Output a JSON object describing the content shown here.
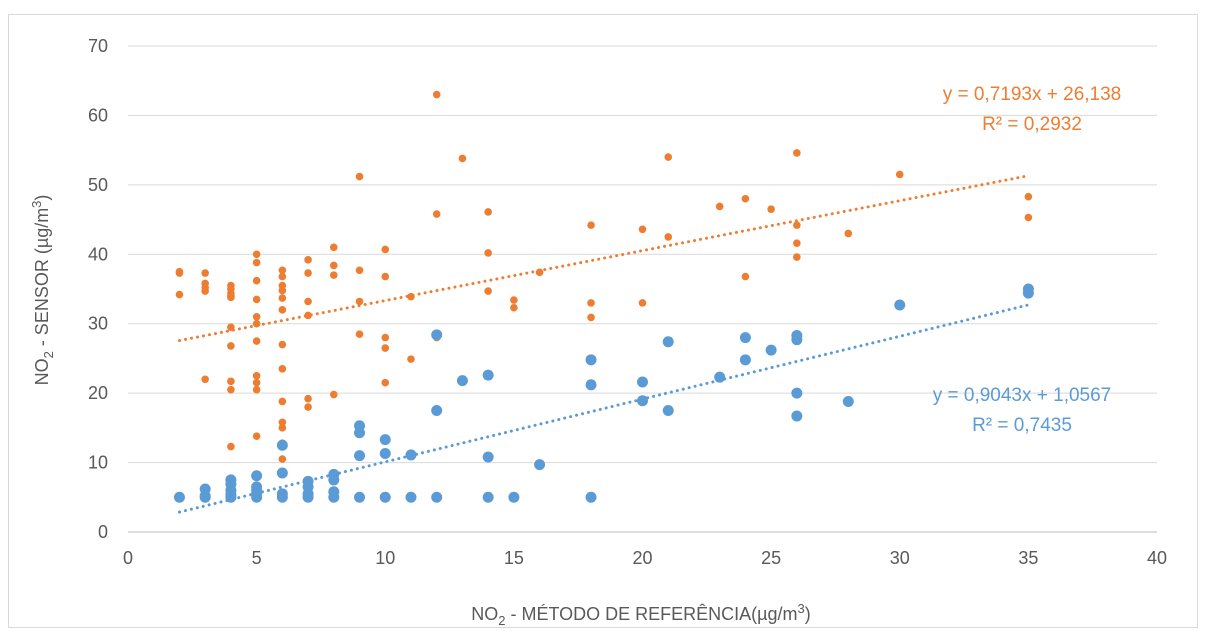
{
  "chart_data": {
    "type": "scatter",
    "xlabel": {
      "pre": "NO",
      "sub": "2",
      "post": " - MÉTODO DE REFERÊNCIA(µg/m",
      "sup": "3",
      "end": ")"
    },
    "ylabel": {
      "pre": "NO",
      "sub": "2",
      "post": " - SENSOR (µg/m",
      "sup": "3",
      "end": ")"
    },
    "xlim": [
      0,
      40
    ],
    "ylim": [
      0,
      70
    ],
    "xticks": [
      "0",
      "5",
      "10",
      "15",
      "20",
      "25",
      "30",
      "35",
      "40"
    ],
    "yticks": [
      "0",
      "10",
      "20",
      "30",
      "40",
      "50",
      "60",
      "70"
    ],
    "grid": "horizontal",
    "series": [
      {
        "color": "#ED7D31",
        "marker_size": "small",
        "equation": "y = 0,7193x + 26,138",
        "r2": "R² = 0,2932",
        "trendline": {
          "slope": 0.7193,
          "intercept": 26.138,
          "x_range": [
            2,
            35
          ]
        },
        "points": [
          [
            2,
            37.5
          ],
          [
            2,
            37.3
          ],
          [
            2,
            34.2
          ],
          [
            3,
            37.3
          ],
          [
            3,
            35.8
          ],
          [
            3,
            35.2
          ],
          [
            3,
            34.7
          ],
          [
            3,
            22
          ],
          [
            4,
            35.5
          ],
          [
            4,
            35
          ],
          [
            4,
            34.4
          ],
          [
            4,
            34
          ],
          [
            4,
            33.8
          ],
          [
            4,
            29.5
          ],
          [
            4,
            26.8
          ],
          [
            4,
            21.7
          ],
          [
            4,
            20.5
          ],
          [
            4,
            12.3
          ],
          [
            5,
            40
          ],
          [
            5,
            38.8
          ],
          [
            5,
            36.2
          ],
          [
            5,
            33.5
          ],
          [
            5,
            31
          ],
          [
            5,
            30
          ],
          [
            5,
            27.5
          ],
          [
            5,
            22.5
          ],
          [
            5,
            21.5
          ],
          [
            5,
            20.5
          ],
          [
            5,
            13.8
          ],
          [
            6,
            37.7
          ],
          [
            6,
            36.8
          ],
          [
            6,
            35.5
          ],
          [
            6,
            34.8
          ],
          [
            6,
            33.7
          ],
          [
            6,
            32
          ],
          [
            6,
            27
          ],
          [
            6,
            23.5
          ],
          [
            6,
            18.8
          ],
          [
            6,
            15.8
          ],
          [
            6,
            15
          ],
          [
            6,
            12.8
          ],
          [
            6,
            10.5
          ],
          [
            7,
            39.2
          ],
          [
            7,
            37.3
          ],
          [
            7,
            33.2
          ],
          [
            7,
            31.2
          ],
          [
            7,
            19.2
          ],
          [
            7,
            18
          ],
          [
            8,
            41
          ],
          [
            8,
            38.4
          ],
          [
            8,
            37
          ],
          [
            8,
            19.8
          ],
          [
            9,
            51.2
          ],
          [
            9,
            37.7
          ],
          [
            9,
            33.2
          ],
          [
            9,
            28.5
          ],
          [
            10,
            40.7
          ],
          [
            10,
            36.8
          ],
          [
            10,
            28
          ],
          [
            10,
            26.5
          ],
          [
            10,
            21.5
          ],
          [
            11,
            33.9
          ],
          [
            11,
            24.9
          ],
          [
            12,
            63
          ],
          [
            12,
            45.8
          ],
          [
            12,
            28
          ],
          [
            13,
            53.8
          ],
          [
            14,
            46.1
          ],
          [
            14,
            40.2
          ],
          [
            14,
            34.7
          ],
          [
            15,
            33.4
          ],
          [
            15,
            32.3
          ],
          [
            16,
            37.4
          ],
          [
            18,
            44.2
          ],
          [
            18,
            33
          ],
          [
            18,
            30.9
          ],
          [
            20,
            43.6
          ],
          [
            20,
            33
          ],
          [
            21,
            54
          ],
          [
            21,
            42.5
          ],
          [
            23,
            46.9
          ],
          [
            24,
            48
          ],
          [
            24,
            36.8
          ],
          [
            25,
            46.5
          ],
          [
            26,
            54.6
          ],
          [
            26,
            44.2
          ],
          [
            26,
            41.6
          ],
          [
            26,
            39.6
          ],
          [
            28,
            43
          ],
          [
            30,
            51.5
          ],
          [
            35,
            48.3
          ],
          [
            35,
            45.3
          ]
        ]
      },
      {
        "color": "#5B9BD5",
        "marker_size": "large",
        "equation": "y = 0,9043x + 1,0567",
        "r2": "R² = 0,7435",
        "trendline": {
          "slope": 0.9043,
          "intercept": 1.0567,
          "x_range": [
            2,
            35
          ]
        },
        "points": [
          [
            2,
            5
          ],
          [
            3,
            6.2
          ],
          [
            3,
            5.2
          ],
          [
            3,
            5
          ],
          [
            4,
            7.5
          ],
          [
            4,
            6.9
          ],
          [
            4,
            6
          ],
          [
            4,
            5.4
          ],
          [
            4,
            5
          ],
          [
            5,
            8.1
          ],
          [
            5,
            6.5
          ],
          [
            5,
            6
          ],
          [
            5,
            5.5
          ],
          [
            5,
            5
          ],
          [
            6,
            12.5
          ],
          [
            6,
            8.5
          ],
          [
            6,
            5.5
          ],
          [
            6,
            5
          ],
          [
            7,
            7.3
          ],
          [
            7,
            6.5
          ],
          [
            7,
            5.5
          ],
          [
            7,
            5
          ],
          [
            8,
            8.3
          ],
          [
            8,
            7.5
          ],
          [
            8,
            5.8
          ],
          [
            8,
            5
          ],
          [
            9,
            15.3
          ],
          [
            9,
            14.3
          ],
          [
            9,
            11
          ],
          [
            9,
            5
          ],
          [
            10,
            13.3
          ],
          [
            10,
            11.3
          ],
          [
            10,
            5
          ],
          [
            11,
            11.1
          ],
          [
            11,
            5
          ],
          [
            12,
            28.4
          ],
          [
            12,
            17.5
          ],
          [
            12,
            5
          ],
          [
            13,
            21.8
          ],
          [
            14,
            22.6
          ],
          [
            14,
            10.8
          ],
          [
            14,
            5
          ],
          [
            15,
            5
          ],
          [
            16,
            9.7
          ],
          [
            18,
            24.8
          ],
          [
            18,
            21.2
          ],
          [
            18,
            5
          ],
          [
            20,
            21.6
          ],
          [
            20,
            18.9
          ],
          [
            21,
            27.4
          ],
          [
            21,
            17.5
          ],
          [
            23,
            22.3
          ],
          [
            24,
            28
          ],
          [
            24,
            24.8
          ],
          [
            25,
            26.2
          ],
          [
            26,
            28.3
          ],
          [
            26,
            27.7
          ],
          [
            26,
            20
          ],
          [
            26,
            16.7
          ],
          [
            28,
            18.8
          ],
          [
            30,
            32.7
          ],
          [
            35,
            35
          ],
          [
            35,
            34.4
          ]
        ]
      }
    ]
  }
}
